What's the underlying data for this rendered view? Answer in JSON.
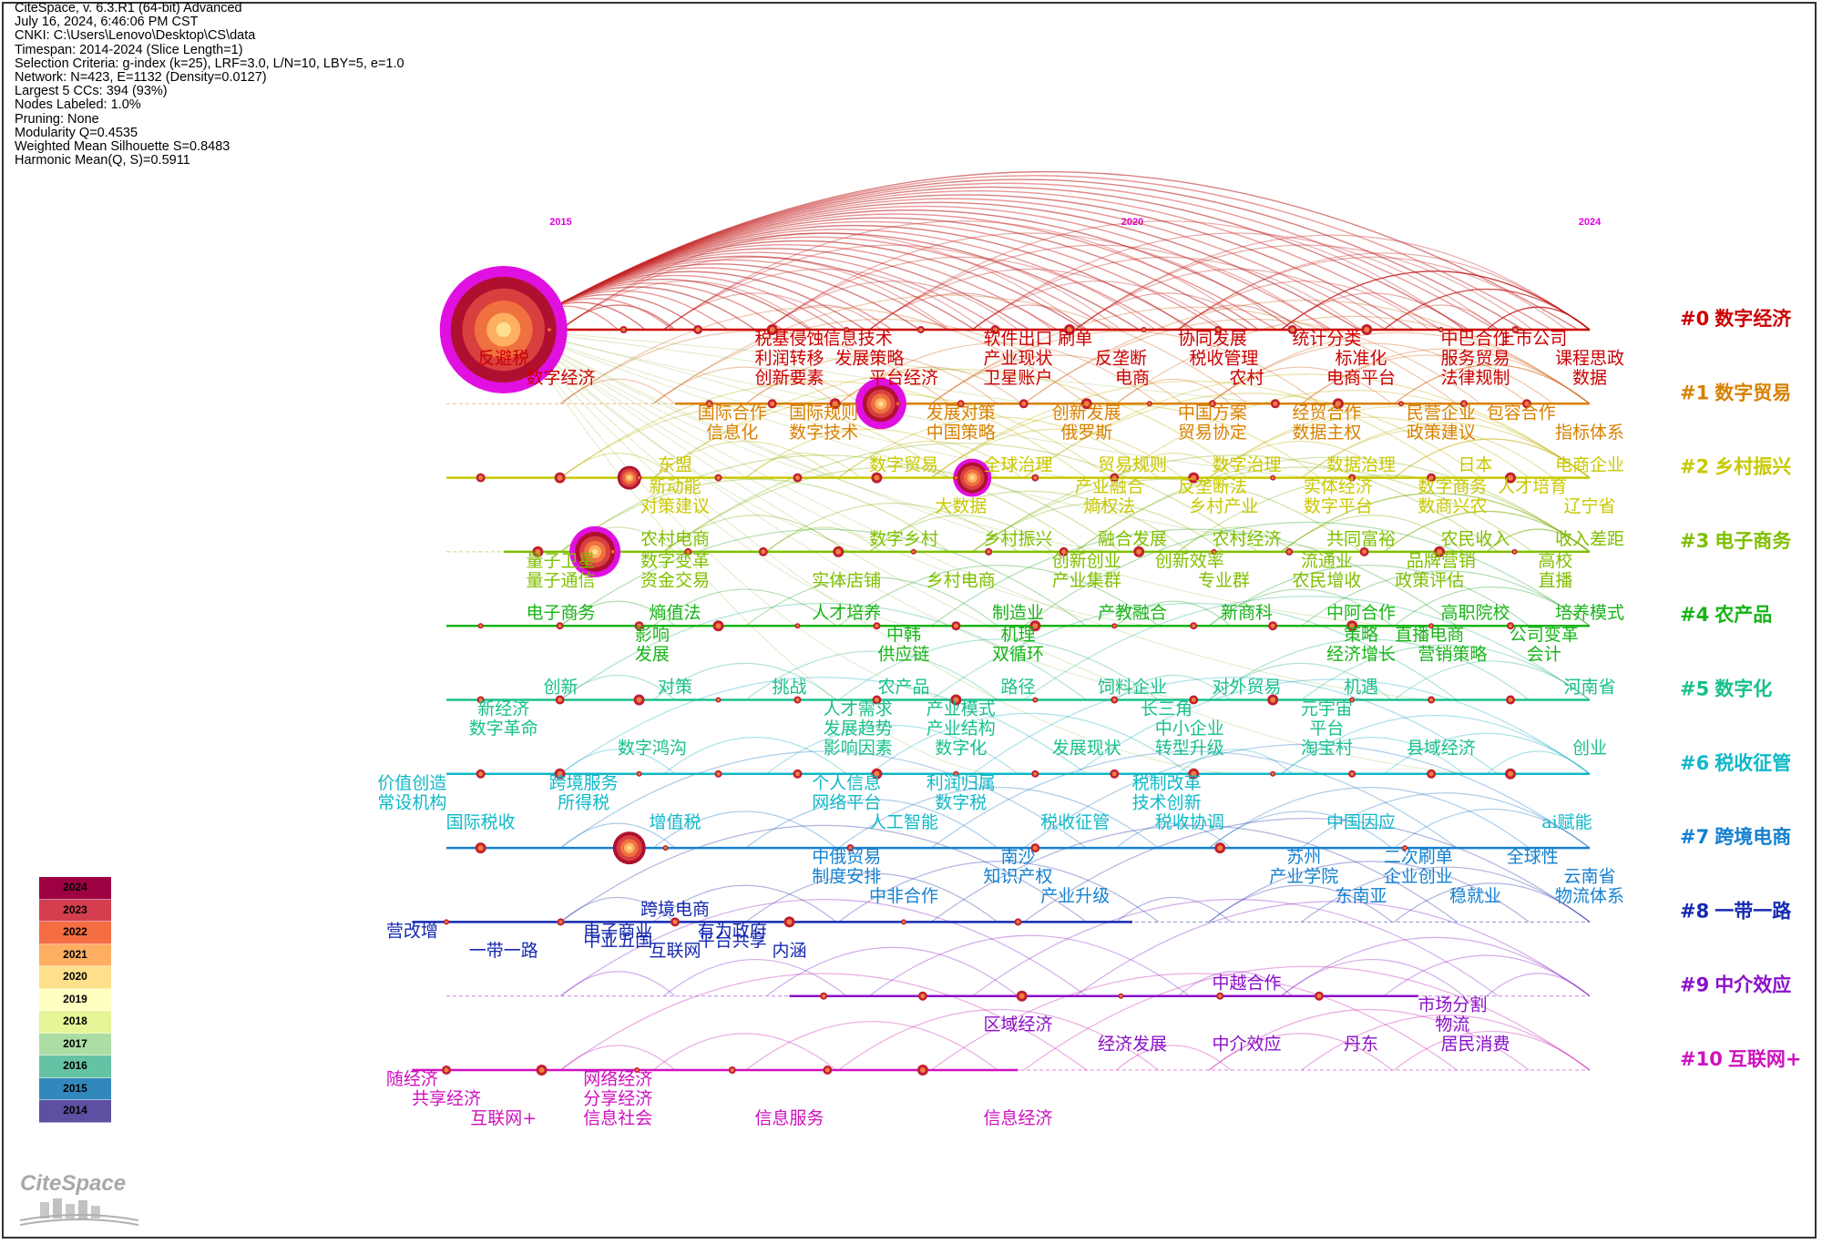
{
  "header": {
    "lines": [
      "CiteSpace, v. 6.3.R1 (64-bit) Advanced",
      "July 16, 2024, 6:46:06 PM CST",
      "CNKI: C:\\Users\\Lenovo\\Desktop\\CS\\data",
      "Timespan: 2014-2024 (Slice Length=1)",
      "Selection Criteria: g-index (k=25), LRF=3.0, L/N=10, LBY=5, e=1.0",
      "Network: N=423, E=1132 (Density=0.0127)",
      "Largest 5 CCs: 394 (93%)",
      "Nodes Labeled: 1.0%",
      "Pruning: None",
      "Modularity Q=0.4535",
      "Weighted Mean Silhouette S=0.8483",
      "Harmonic Mean(Q, S)=0.5911"
    ]
  },
  "year_axis": {
    "labels": [
      "2015",
      "2020",
      "2024"
    ],
    "label_years": [
      2015,
      2020,
      2024
    ],
    "year_range": [
      2014,
      2024
    ]
  },
  "legend": {
    "years": [
      "2024",
      "2023",
      "2022",
      "2021",
      "2020",
      "2019",
      "2018",
      "2017",
      "2016",
      "2015",
      "2014"
    ],
    "colors": [
      "#9e0142",
      "#d53e4f",
      "#f46d43",
      "#fdae61",
      "#fee08b",
      "#ffffbf",
      "#e6f598",
      "#abdda4",
      "#66c2a5",
      "#3288bd",
      "#5e4fa2"
    ]
  },
  "logo": {
    "text": "CiteSpace"
  },
  "clusters": [
    {
      "id": "#0",
      "name": "数字经济",
      "color": "#cc0000"
    },
    {
      "id": "#1",
      "name": "数字贸易",
      "color": "#d98000"
    },
    {
      "id": "#2",
      "name": "乡村振兴",
      "color": "#c8c800"
    },
    {
      "id": "#3",
      "name": "电子商务",
      "color": "#7fbf00"
    },
    {
      "id": "#4",
      "name": "农产品",
      "color": "#18b418"
    },
    {
      "id": "#5",
      "name": "数字化",
      "color": "#18c08c"
    },
    {
      "id": "#6",
      "name": "税收征管",
      "color": "#10b8c8"
    },
    {
      "id": "#7",
      "name": "跨境电商",
      "color": "#1480d0"
    },
    {
      "id": "#8",
      "name": "一带一路",
      "color": "#1428b0"
    },
    {
      "id": "#9",
      "name": "中介效应",
      "color": "#8a10c8"
    },
    {
      "id": "#10",
      "name": "互联网+",
      "color": "#d010c0"
    }
  ],
  "keywords": [
    {
      "c": 0,
      "t": "反避税",
      "y": 2014.5,
      "row": 1
    },
    {
      "c": 0,
      "t": "数字经济",
      "y": 2015,
      "row": 2
    },
    {
      "c": 0,
      "t": "税基侵蚀",
      "y": 2017,
      "row": 0
    },
    {
      "c": 0,
      "t": "信息技术",
      "y": 2017.6,
      "row": 0
    },
    {
      "c": 0,
      "t": "利润转移",
      "y": 2017,
      "row": 1
    },
    {
      "c": 0,
      "t": "发展策略",
      "y": 2017.7,
      "row": 1
    },
    {
      "c": 0,
      "t": "创新要素",
      "y": 2017,
      "row": 2
    },
    {
      "c": 0,
      "t": "平台经济",
      "y": 2018,
      "row": 2
    },
    {
      "c": 0,
      "t": "软件出口",
      "y": 2019,
      "row": 0
    },
    {
      "c": 0,
      "t": "刷单",
      "y": 2019.5,
      "row": 0
    },
    {
      "c": 0,
      "t": "产业现状",
      "y": 2019,
      "row": 1
    },
    {
      "c": 0,
      "t": "卫星账户",
      "y": 2019,
      "row": 2
    },
    {
      "c": 0,
      "t": "反垄断",
      "y": 2019.9,
      "row": 1
    },
    {
      "c": 0,
      "t": "电商",
      "y": 2020,
      "row": 2
    },
    {
      "c": 0,
      "t": "协同发展",
      "y": 2020.7,
      "row": 0
    },
    {
      "c": 0,
      "t": "税收管理",
      "y": 2020.8,
      "row": 1
    },
    {
      "c": 0,
      "t": "农村",
      "y": 2021,
      "row": 2
    },
    {
      "c": 0,
      "t": "统计分类",
      "y": 2021.7,
      "row": 0
    },
    {
      "c": 0,
      "t": "标准化",
      "y": 2022,
      "row": 1
    },
    {
      "c": 0,
      "t": "电商平台",
      "y": 2022,
      "row": 2
    },
    {
      "c": 0,
      "t": "中巴合作",
      "y": 2023,
      "row": 0
    },
    {
      "c": 0,
      "t": "上市公司",
      "y": 2023.5,
      "row": 0
    },
    {
      "c": 0,
      "t": "服务贸易",
      "y": 2023,
      "row": 1
    },
    {
      "c": 0,
      "t": "法律规制",
      "y": 2023,
      "row": 2
    },
    {
      "c": 0,
      "t": "课程思政",
      "y": 2024,
      "row": 1
    },
    {
      "c": 0,
      "t": "数据",
      "y": 2024,
      "row": 2
    },
    {
      "c": 1,
      "t": "国际合作",
      "y": 2016.5,
      "row": 0
    },
    {
      "c": 1,
      "t": "信息化",
      "y": 2016.5,
      "row": 1
    },
    {
      "c": 1,
      "t": "国际规则",
      "y": 2017.3,
      "row": 0
    },
    {
      "c": 1,
      "t": "数字技术",
      "y": 2017.3,
      "row": 1
    },
    {
      "c": 1,
      "t": "发展对策",
      "y": 2018.5,
      "row": 0
    },
    {
      "c": 1,
      "t": "中国策略",
      "y": 2018.5,
      "row": 1
    },
    {
      "c": 1,
      "t": "创新发展",
      "y": 2019.6,
      "row": 0
    },
    {
      "c": 1,
      "t": "俄罗斯",
      "y": 2019.6,
      "row": 1
    },
    {
      "c": 1,
      "t": "中国方案",
      "y": 2020.7,
      "row": 0
    },
    {
      "c": 1,
      "t": "贸易协定",
      "y": 2020.7,
      "row": 1
    },
    {
      "c": 1,
      "t": "经贸合作",
      "y": 2021.7,
      "row": 0
    },
    {
      "c": 1,
      "t": "数据主权",
      "y": 2021.7,
      "row": 1
    },
    {
      "c": 1,
      "t": "民营企业",
      "y": 2022.7,
      "row": 0
    },
    {
      "c": 1,
      "t": "包容合作",
      "y": 2023.4,
      "row": 0
    },
    {
      "c": 1,
      "t": "政策建议",
      "y": 2022.7,
      "row": 1
    },
    {
      "c": 1,
      "t": "指标体系",
      "y": 2024,
      "row": 1
    },
    {
      "c": 2,
      "t": "东盟",
      "y": 2016,
      "row": -1
    },
    {
      "c": 2,
      "t": "数字贸易",
      "y": 2018,
      "row": -1
    },
    {
      "c": 2,
      "t": "全球治理",
      "y": 2019,
      "row": -1
    },
    {
      "c": 2,
      "t": "贸易规则",
      "y": 2020,
      "row": -1
    },
    {
      "c": 2,
      "t": "数字治理",
      "y": 2021,
      "row": -1
    },
    {
      "c": 2,
      "t": "数据治理",
      "y": 2022,
      "row": -1
    },
    {
      "c": 2,
      "t": "日本",
      "y": 2023,
      "row": -1
    },
    {
      "c": 2,
      "t": "电商企业",
      "y": 2024,
      "row": -1
    },
    {
      "c": 2,
      "t": "新动能",
      "y": 2016,
      "row": 0
    },
    {
      "c": 2,
      "t": "对策建议",
      "y": 2016,
      "row": 1
    },
    {
      "c": 2,
      "t": "大数据",
      "y": 2018.5,
      "row": 1
    },
    {
      "c": 2,
      "t": "产业融合",
      "y": 2019.8,
      "row": 0
    },
    {
      "c": 2,
      "t": "熵权法",
      "y": 2019.8,
      "row": 1
    },
    {
      "c": 2,
      "t": "反垄断法",
      "y": 2020.7,
      "row": 0
    },
    {
      "c": 2,
      "t": "乡村产业",
      "y": 2020.8,
      "row": 1
    },
    {
      "c": 2,
      "t": "实体经济",
      "y": 2021.8,
      "row": 0
    },
    {
      "c": 2,
      "t": "数字平台",
      "y": 2021.8,
      "row": 1
    },
    {
      "c": 2,
      "t": "数字商务",
      "y": 2022.8,
      "row": 0
    },
    {
      "c": 2,
      "t": "人才培育",
      "y": 2023.5,
      "row": 0
    },
    {
      "c": 2,
      "t": "数商兴农",
      "y": 2022.8,
      "row": 1
    },
    {
      "c": 2,
      "t": "辽宁省",
      "y": 2024,
      "row": 1
    },
    {
      "c": 3,
      "t": "农村电商",
      "y": 2016,
      "row": -1
    },
    {
      "c": 3,
      "t": "数字乡村",
      "y": 2018,
      "row": -1
    },
    {
      "c": 3,
      "t": "乡村振兴",
      "y": 2019,
      "row": -1
    },
    {
      "c": 3,
      "t": "融合发展",
      "y": 2020,
      "row": -1
    },
    {
      "c": 3,
      "t": "农村经济",
      "y": 2021,
      "row": -1
    },
    {
      "c": 3,
      "t": "共同富裕",
      "y": 2022,
      "row": -1
    },
    {
      "c": 3,
      "t": "农民收入",
      "y": 2023,
      "row": -1
    },
    {
      "c": 3,
      "t": "收入差距",
      "y": 2024,
      "row": -1
    },
    {
      "c": 3,
      "t": "量子卫星",
      "y": 2015,
      "row": 0
    },
    {
      "c": 3,
      "t": "量子通信",
      "y": 2015,
      "row": 1
    },
    {
      "c": 3,
      "t": "数字变革",
      "y": 2016,
      "row": 0
    },
    {
      "c": 3,
      "t": "资金交易",
      "y": 2016,
      "row": 1
    },
    {
      "c": 3,
      "t": "实体店铺",
      "y": 2017.5,
      "row": 1
    },
    {
      "c": 3,
      "t": "乡村电商",
      "y": 2018.5,
      "row": 1
    },
    {
      "c": 3,
      "t": "创新创业",
      "y": 2019.6,
      "row": 0
    },
    {
      "c": 3,
      "t": "产业集群",
      "y": 2019.6,
      "row": 1
    },
    {
      "c": 3,
      "t": "创新效率",
      "y": 2020.5,
      "row": 0
    },
    {
      "c": 3,
      "t": "专业群",
      "y": 2020.8,
      "row": 1
    },
    {
      "c": 3,
      "t": "流通业",
      "y": 2021.7,
      "row": 0
    },
    {
      "c": 3,
      "t": "品牌营销",
      "y": 2022.7,
      "row": 0
    },
    {
      "c": 3,
      "t": "农民增收",
      "y": 2021.7,
      "row": 1
    },
    {
      "c": 3,
      "t": "政策评估",
      "y": 2022.6,
      "row": 1
    },
    {
      "c": 3,
      "t": "高校",
      "y": 2023.7,
      "row": 0
    },
    {
      "c": 3,
      "t": "直播",
      "y": 2023.7,
      "row": 1
    },
    {
      "c": 4,
      "t": "电子商务",
      "y": 2015,
      "row": -1
    },
    {
      "c": 4,
      "t": "熵值法",
      "y": 2016,
      "row": -1
    },
    {
      "c": 4,
      "t": "人才培养",
      "y": 2017.5,
      "row": -1
    },
    {
      "c": 4,
      "t": "制造业",
      "y": 2019,
      "row": -1
    },
    {
      "c": 4,
      "t": "产教融合",
      "y": 2020,
      "row": -1
    },
    {
      "c": 4,
      "t": "新商科",
      "y": 2021,
      "row": -1
    },
    {
      "c": 4,
      "t": "中阿合作",
      "y": 2022,
      "row": -1
    },
    {
      "c": 4,
      "t": "高职院校",
      "y": 2023,
      "row": -1
    },
    {
      "c": 4,
      "t": "培养模式",
      "y": 2024,
      "row": -1
    },
    {
      "c": 4,
      "t": "影响",
      "y": 2015.8,
      "row": 0
    },
    {
      "c": 4,
      "t": "发展",
      "y": 2015.8,
      "row": 1
    },
    {
      "c": 4,
      "t": "中韩",
      "y": 2018,
      "row": 0
    },
    {
      "c": 4,
      "t": "供应链",
      "y": 2018,
      "row": 1
    },
    {
      "c": 4,
      "t": "机理",
      "y": 2019,
      "row": 0
    },
    {
      "c": 4,
      "t": "双循环",
      "y": 2019,
      "row": 1
    },
    {
      "c": 4,
      "t": "策略",
      "y": 2022,
      "row": 0
    },
    {
      "c": 4,
      "t": "直播电商",
      "y": 2022.6,
      "row": 0
    },
    {
      "c": 4,
      "t": "经济增长",
      "y": 2022,
      "row": 1
    },
    {
      "c": 4,
      "t": "营销策略",
      "y": 2022.8,
      "row": 1
    },
    {
      "c": 4,
      "t": "公司变革",
      "y": 2023.6,
      "row": 0
    },
    {
      "c": 4,
      "t": "会计",
      "y": 2023.6,
      "row": 1
    },
    {
      "c": 5,
      "t": "创新",
      "y": 2015,
      "row": -1
    },
    {
      "c": 5,
      "t": "对策",
      "y": 2016,
      "row": -1
    },
    {
      "c": 5,
      "t": "挑战",
      "y": 2017,
      "row": -1
    },
    {
      "c": 5,
      "t": "农产品",
      "y": 2018,
      "row": -1
    },
    {
      "c": 5,
      "t": "路径",
      "y": 2019,
      "row": -1
    },
    {
      "c": 5,
      "t": "饲料企业",
      "y": 2020,
      "row": -1
    },
    {
      "c": 5,
      "t": "对外贸易",
      "y": 2021,
      "row": -1
    },
    {
      "c": 5,
      "t": "机遇",
      "y": 2022,
      "row": -1
    },
    {
      "c": 5,
      "t": "河南省",
      "y": 2024,
      "row": -1
    },
    {
      "c": 5,
      "t": "新经济",
      "y": 2014.5,
      "row": 0
    },
    {
      "c": 5,
      "t": "数字革命",
      "y": 2014.5,
      "row": 1
    },
    {
      "c": 5,
      "t": "数字鸿沟",
      "y": 2015.8,
      "row": 2
    },
    {
      "c": 5,
      "t": "人才需求",
      "y": 2017.6,
      "row": 0
    },
    {
      "c": 5,
      "t": "发展趋势",
      "y": 2017.6,
      "row": 1
    },
    {
      "c": 5,
      "t": "影响因素",
      "y": 2017.6,
      "row": 2
    },
    {
      "c": 5,
      "t": "产业模式",
      "y": 2018.5,
      "row": 0
    },
    {
      "c": 5,
      "t": "产业结构",
      "y": 2018.5,
      "row": 1
    },
    {
      "c": 5,
      "t": "数字化",
      "y": 2018.5,
      "row": 2
    },
    {
      "c": 5,
      "t": "发展现状",
      "y": 2019.6,
      "row": 2
    },
    {
      "c": 5,
      "t": "长三角",
      "y": 2020.3,
      "row": 0
    },
    {
      "c": 5,
      "t": "中小企业",
      "y": 2020.5,
      "row": 1
    },
    {
      "c": 5,
      "t": "转型升级",
      "y": 2020.5,
      "row": 2
    },
    {
      "c": 5,
      "t": "元宇宙",
      "y": 2021.7,
      "row": 0
    },
    {
      "c": 5,
      "t": "平台",
      "y": 2021.7,
      "row": 1
    },
    {
      "c": 5,
      "t": "淘宝村",
      "y": 2021.7,
      "row": 2
    },
    {
      "c": 5,
      "t": "县域经济",
      "y": 2022.7,
      "row": 2
    },
    {
      "c": 5,
      "t": "创业",
      "y": 2024,
      "row": 2
    },
    {
      "c": 6,
      "t": "价值创造",
      "y": 2013.7,
      "row": 0
    },
    {
      "c": 6,
      "t": "常设机构",
      "y": 2013.7,
      "row": 1
    },
    {
      "c": 6,
      "t": "国际税收",
      "y": 2014.3,
      "row": 2
    },
    {
      "c": 6,
      "t": "跨境服务",
      "y": 2015.2,
      "row": 0
    },
    {
      "c": 6,
      "t": "所得税",
      "y": 2015.2,
      "row": 1
    },
    {
      "c": 6,
      "t": "增值税",
      "y": 2016,
      "row": 2
    },
    {
      "c": 6,
      "t": "个人信息",
      "y": 2017.5,
      "row": 0
    },
    {
      "c": 6,
      "t": "网络平台",
      "y": 2017.5,
      "row": 1
    },
    {
      "c": 6,
      "t": "人工智能",
      "y": 2018,
      "row": 2
    },
    {
      "c": 6,
      "t": "利润归属",
      "y": 2018.5,
      "row": 0
    },
    {
      "c": 6,
      "t": "数字税",
      "y": 2018.5,
      "row": 1
    },
    {
      "c": 6,
      "t": "税收征管",
      "y": 2019.5,
      "row": 2
    },
    {
      "c": 6,
      "t": "税制改革",
      "y": 2020.3,
      "row": 0
    },
    {
      "c": 6,
      "t": "技术创新",
      "y": 2020.3,
      "row": 1
    },
    {
      "c": 6,
      "t": "税收协调",
      "y": 2020.5,
      "row": 2
    },
    {
      "c": 6,
      "t": "中国因应",
      "y": 2022,
      "row": 2
    },
    {
      "c": 6,
      "t": "ai赋能",
      "y": 2023.8,
      "row": 2
    },
    {
      "c": 7,
      "t": "中俄贸易",
      "y": 2017.5,
      "row": 0
    },
    {
      "c": 7,
      "t": "制度安排",
      "y": 2017.5,
      "row": 1
    },
    {
      "c": 7,
      "t": "中非合作",
      "y": 2018,
      "row": 2
    },
    {
      "c": 7,
      "t": "南沙",
      "y": 2019,
      "row": 0
    },
    {
      "c": 7,
      "t": "知识产权",
      "y": 2019,
      "row": 1
    },
    {
      "c": 7,
      "t": "产业升级",
      "y": 2019.5,
      "row": 2
    },
    {
      "c": 7,
      "t": "苏州",
      "y": 2021.5,
      "row": 0
    },
    {
      "c": 7,
      "t": "产业学院",
      "y": 2021.5,
      "row": 1
    },
    {
      "c": 7,
      "t": "东南亚",
      "y": 2022,
      "row": 2
    },
    {
      "c": 7,
      "t": "二次刷单",
      "y": 2022.5,
      "row": 0
    },
    {
      "c": 7,
      "t": "企业创业",
      "y": 2022.5,
      "row": 1
    },
    {
      "c": 7,
      "t": "稳就业",
      "y": 2023,
      "row": 2
    },
    {
      "c": 7,
      "t": "全球性",
      "y": 2023.5,
      "row": 0
    },
    {
      "c": 7,
      "t": "云南省",
      "y": 2024,
      "row": 1
    },
    {
      "c": 7,
      "t": "物流体系",
      "y": 2024,
      "row": 2
    },
    {
      "c": 8,
      "t": "跨境电商",
      "y": 2016,
      "row": -1
    },
    {
      "c": 8,
      "t": "营改增",
      "y": 2013.7,
      "row": 0
    },
    {
      "c": 8,
      "t": "一带一路",
      "y": 2014.5,
      "row": 1
    },
    {
      "c": 8,
      "t": "电子商业",
      "y": 2015.5,
      "row": 0
    },
    {
      "c": 8,
      "t": "中亚五国",
      "y": 2015.5,
      "row": 0.5
    },
    {
      "c": 8,
      "t": "互联网",
      "y": 2016,
      "row": 1
    },
    {
      "c": 8,
      "t": "有为政府",
      "y": 2016.5,
      "row": 0
    },
    {
      "c": 8,
      "t": "平台共享",
      "y": 2016.5,
      "row": 0.5
    },
    {
      "c": 8,
      "t": "内涵",
      "y": 2017,
      "row": 1
    },
    {
      "c": 9,
      "t": "中越合作",
      "y": 2021,
      "row": -1
    },
    {
      "c": 9,
      "t": "市场分割",
      "y": 2022.8,
      "row": 0
    },
    {
      "c": 9,
      "t": "物流",
      "y": 2022.8,
      "row": 1
    },
    {
      "c": 9,
      "t": "区域经济",
      "y": 2019,
      "row": 1
    },
    {
      "c": 9,
      "t": "经济发展",
      "y": 2020,
      "row": 2
    },
    {
      "c": 9,
      "t": "中介效应",
      "y": 2021,
      "row": 2
    },
    {
      "c": 9,
      "t": "丹东",
      "y": 2022,
      "row": 2
    },
    {
      "c": 9,
      "t": "居民消费",
      "y": 2023,
      "row": 2
    },
    {
      "c": 10,
      "t": "随经济",
      "y": 2013.7,
      "row": 0
    },
    {
      "c": 10,
      "t": "共享经济",
      "y": 2014,
      "row": 1
    },
    {
      "c": 10,
      "t": "互联网+",
      "y": 2014.5,
      "row": 2
    },
    {
      "c": 10,
      "t": "网络经济",
      "y": 2015.5,
      "row": 0
    },
    {
      "c": 10,
      "t": "分享经济",
      "y": 2015.5,
      "row": 1
    },
    {
      "c": 10,
      "t": "信息社会",
      "y": 2015.5,
      "row": 2
    },
    {
      "c": 10,
      "t": "信息服务",
      "y": 2017,
      "row": 2
    },
    {
      "c": 10,
      "t": "信息经济",
      "y": 2019,
      "row": 2
    }
  ]
}
